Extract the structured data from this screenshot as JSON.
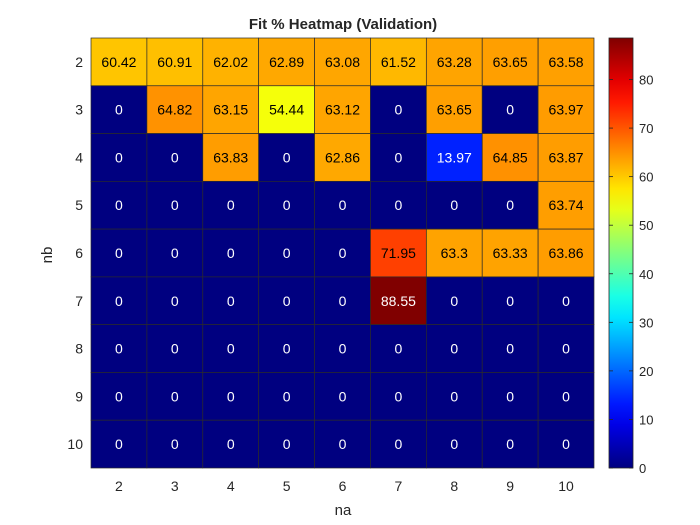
{
  "chart_data": {
    "type": "heatmap",
    "title": "Fit % Heatmap (Validation)",
    "xlabel": "na",
    "ylabel": "nb",
    "x": [
      "2",
      "3",
      "4",
      "5",
      "6",
      "7",
      "8",
      "9",
      "10"
    ],
    "y": [
      "2",
      "3",
      "4",
      "5",
      "6",
      "7",
      "8",
      "9",
      "10"
    ],
    "values": [
      [
        60.42,
        60.91,
        62.02,
        62.89,
        63.08,
        61.52,
        63.28,
        63.65,
        63.58
      ],
      [
        0,
        64.82,
        63.15,
        54.44,
        63.12,
        0,
        63.65,
        0,
        63.97
      ],
      [
        0,
        0,
        63.83,
        0,
        62.86,
        0,
        13.97,
        64.85,
        63.87
      ],
      [
        0,
        0,
        0,
        0,
        0,
        0,
        0,
        0,
        63.74
      ],
      [
        0,
        0,
        0,
        0,
        0,
        71.95,
        63.3,
        63.33,
        63.86
      ],
      [
        0,
        0,
        0,
        0,
        0,
        88.55,
        0,
        0,
        0
      ],
      [
        0,
        0,
        0,
        0,
        0,
        0,
        0,
        0,
        0
      ],
      [
        0,
        0,
        0,
        0,
        0,
        0,
        0,
        0,
        0
      ],
      [
        0,
        0,
        0,
        0,
        0,
        0,
        0,
        0,
        0
      ]
    ],
    "colormap": "jet",
    "clim": [
      0,
      88.55
    ],
    "colorbar_ticks": [
      0,
      10,
      20,
      30,
      40,
      50,
      60,
      70,
      80
    ],
    "grid": true,
    "legend": "colorbar-right"
  }
}
